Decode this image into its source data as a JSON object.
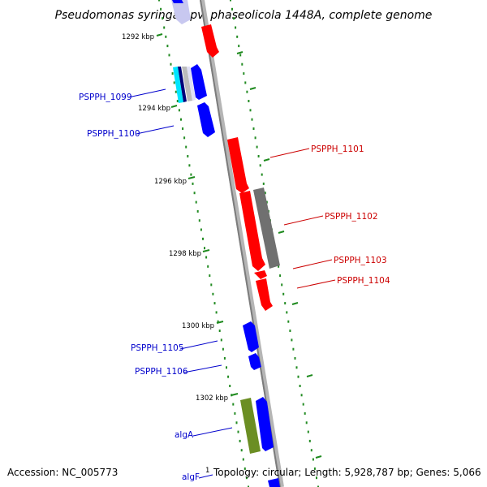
{
  "title": "Pseudomonas syringae pv. phaseolicola 1448A, complete genome",
  "footer": {
    "accession": "Accession: NC_005773",
    "summary": "Topology: circular; Length: 5,928,787 bp; Genes: 5,066"
  },
  "scale": {
    "unit": "kbp",
    "labels": [
      "1292 kbp",
      "1294 kbp",
      "1296 kbp",
      "1298 kbp",
      "1300 kbp",
      "1302 kbp"
    ],
    "bottom_partial_label": "1"
  },
  "colors": {
    "forward": "#0000ff",
    "reverse": "#ff0000",
    "pseudogene": "#707070",
    "rna_like": "#00e5ff",
    "other": "#6b8e23",
    "faded_forward": "#c8c8f0",
    "backbone": "#8c8c8c",
    "dots": "#228b22"
  },
  "genes": [
    {
      "label": "PSPPH_1099",
      "strand": "forward"
    },
    {
      "label": "PSPPH_1100",
      "strand": "forward"
    },
    {
      "label": "PSPPH_1101",
      "strand": "reverse"
    },
    {
      "label": "PSPPH_1102",
      "strand": "reverse"
    },
    {
      "label": "PSPPH_1103",
      "strand": "reverse"
    },
    {
      "label": "PSPPH_1104",
      "strand": "reverse"
    },
    {
      "label": "PSPPH_1105",
      "strand": "forward"
    },
    {
      "label": "PSPPH_1106",
      "strand": "forward"
    },
    {
      "label": "algA",
      "strand": "forward"
    },
    {
      "label": "algF",
      "strand": "forward"
    }
  ]
}
